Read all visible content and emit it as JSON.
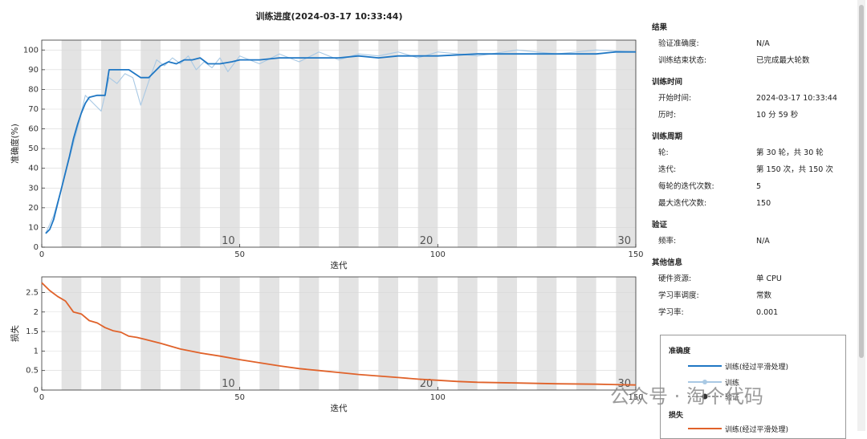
{
  "title": "训练进度(2024-03-17 10:33:44)",
  "chart_data": [
    {
      "type": "line",
      "xlabel": "迭代",
      "ylabel": "准确度(%)",
      "xlim": [
        0,
        150
      ],
      "ylim": [
        0,
        105
      ],
      "xticks": [
        0,
        50,
        100,
        150
      ],
      "yticks": [
        0,
        10,
        20,
        30,
        40,
        50,
        60,
        70,
        80,
        90,
        100
      ],
      "epoch_labels": [
        {
          "epoch": "10",
          "x": 50
        },
        {
          "epoch": "20",
          "x": 100
        },
        {
          "epoch": "30",
          "x": 150
        }
      ],
      "series": [
        {
          "name": "训练(经过平滑处理)",
          "color": "#1f77c4",
          "x": [
            1,
            2,
            3,
            4,
            5,
            6,
            7,
            8,
            9,
            10,
            11,
            12,
            14,
            16,
            17,
            20,
            22,
            25,
            27,
            30,
            32,
            34,
            36,
            38,
            40,
            42,
            45,
            48,
            50,
            55,
            60,
            65,
            70,
            75,
            80,
            85,
            90,
            95,
            100,
            110,
            120,
            130,
            140,
            145,
            150
          ],
          "y": [
            7,
            9,
            14,
            22,
            30,
            38,
            46,
            55,
            62,
            68,
            73,
            76,
            77,
            77,
            90,
            90,
            90,
            86,
            86,
            92,
            94,
            93,
            95,
            95,
            96,
            93,
            93,
            94,
            95,
            95,
            96,
            96,
            96,
            96,
            97,
            96,
            97,
            97,
            97,
            98,
            98,
            98,
            98,
            99,
            99
          ]
        },
        {
          "name": "训练",
          "color": "#a9c9e4",
          "x": [
            1,
            3,
            5,
            7,
            9,
            11,
            13,
            15,
            17,
            19,
            21,
            23,
            25,
            27,
            29,
            31,
            33,
            35,
            37,
            39,
            41,
            43,
            45,
            47,
            50,
            55,
            60,
            65,
            70,
            75,
            80,
            85,
            90,
            95,
            100,
            110,
            120,
            130,
            140,
            150
          ],
          "y": [
            7,
            16,
            30,
            45,
            60,
            77,
            73,
            69,
            86,
            83,
            88,
            86,
            72,
            84,
            95,
            92,
            96,
            93,
            97,
            90,
            94,
            91,
            96,
            89,
            97,
            93,
            98,
            94,
            99,
            95,
            98,
            97,
            99,
            96,
            99,
            97,
            100,
            98,
            100,
            99
          ]
        }
      ]
    },
    {
      "type": "line",
      "xlabel": "迭代",
      "ylabel": "损失",
      "xlim": [
        0,
        150
      ],
      "ylim": [
        0,
        2.9
      ],
      "xticks": [
        0,
        50,
        100,
        150
      ],
      "yticks": [
        0,
        0.5,
        1,
        1.5,
        2,
        2.5
      ],
      "yticklabels": [
        "0",
        "0.5",
        "1",
        "1.5",
        "2",
        "2.5"
      ],
      "epoch_labels": [
        {
          "epoch": "10",
          "x": 50
        },
        {
          "epoch": "20",
          "x": 100
        },
        {
          "epoch": "30",
          "x": 150
        }
      ],
      "series": [
        {
          "name": "训练(经过平滑处理)",
          "color": "#e0622a",
          "x": [
            0,
            2,
            4,
            6,
            8,
            10,
            12,
            14,
            16,
            18,
            20,
            22,
            24,
            26,
            28,
            30,
            35,
            40,
            45,
            50,
            55,
            60,
            65,
            70,
            75,
            80,
            85,
            90,
            95,
            100,
            105,
            110,
            120,
            130,
            140,
            150
          ],
          "y": [
            2.75,
            2.55,
            2.4,
            2.28,
            2.0,
            1.95,
            1.78,
            1.72,
            1.6,
            1.52,
            1.48,
            1.38,
            1.35,
            1.3,
            1.25,
            1.2,
            1.05,
            0.95,
            0.87,
            0.78,
            0.7,
            0.62,
            0.55,
            0.5,
            0.45,
            0.4,
            0.36,
            0.32,
            0.28,
            0.25,
            0.22,
            0.2,
            0.18,
            0.16,
            0.15,
            0.13
          ]
        }
      ]
    }
  ],
  "info": {
    "sections": [
      {
        "title": "结果",
        "rows": [
          {
            "k": "验证准确度:",
            "v": "N/A"
          },
          {
            "k": "训练结束状态:",
            "v": "已完成最大轮数"
          }
        ]
      },
      {
        "title": "训练时间",
        "rows": [
          {
            "k": "开始时间:",
            "v": "2024-03-17 10:33:44"
          },
          {
            "k": "历时:",
            "v": "10 分 59 秒"
          }
        ]
      },
      {
        "title": "训练周期",
        "rows": [
          {
            "k": "轮:",
            "v": "第 30 轮，共 30 轮"
          },
          {
            "k": "迭代:",
            "v": "第 150 次，共 150 次"
          },
          {
            "k": "每轮的迭代次数:",
            "v": "5"
          },
          {
            "k": "最大迭代次数:",
            "v": "150"
          }
        ]
      },
      {
        "title": "验证",
        "rows": [
          {
            "k": "频率:",
            "v": "N/A"
          }
        ]
      },
      {
        "title": "其他信息",
        "rows": [
          {
            "k": "硬件资源:",
            "v": "单 CPU"
          },
          {
            "k": "学习率调度:",
            "v": "常数"
          },
          {
            "k": "学习率:",
            "v": "0.001"
          }
        ]
      }
    ]
  },
  "legend": {
    "accuracy_title": "准确度",
    "loss_title": "损失",
    "smoothed": "训练(经过平滑处理)",
    "train": "训练",
    "validation": "验证",
    "loss_smoothed": "训练(经过平滑处理)"
  },
  "watermark": "公众号 · 淘个代码",
  "colors": {
    "accuracy": "#1f77c4",
    "accuracy_raw": "#a9c9e4",
    "loss": "#e0622a",
    "loss_raw": "#f2b89a",
    "band": "#e3e3e3"
  }
}
